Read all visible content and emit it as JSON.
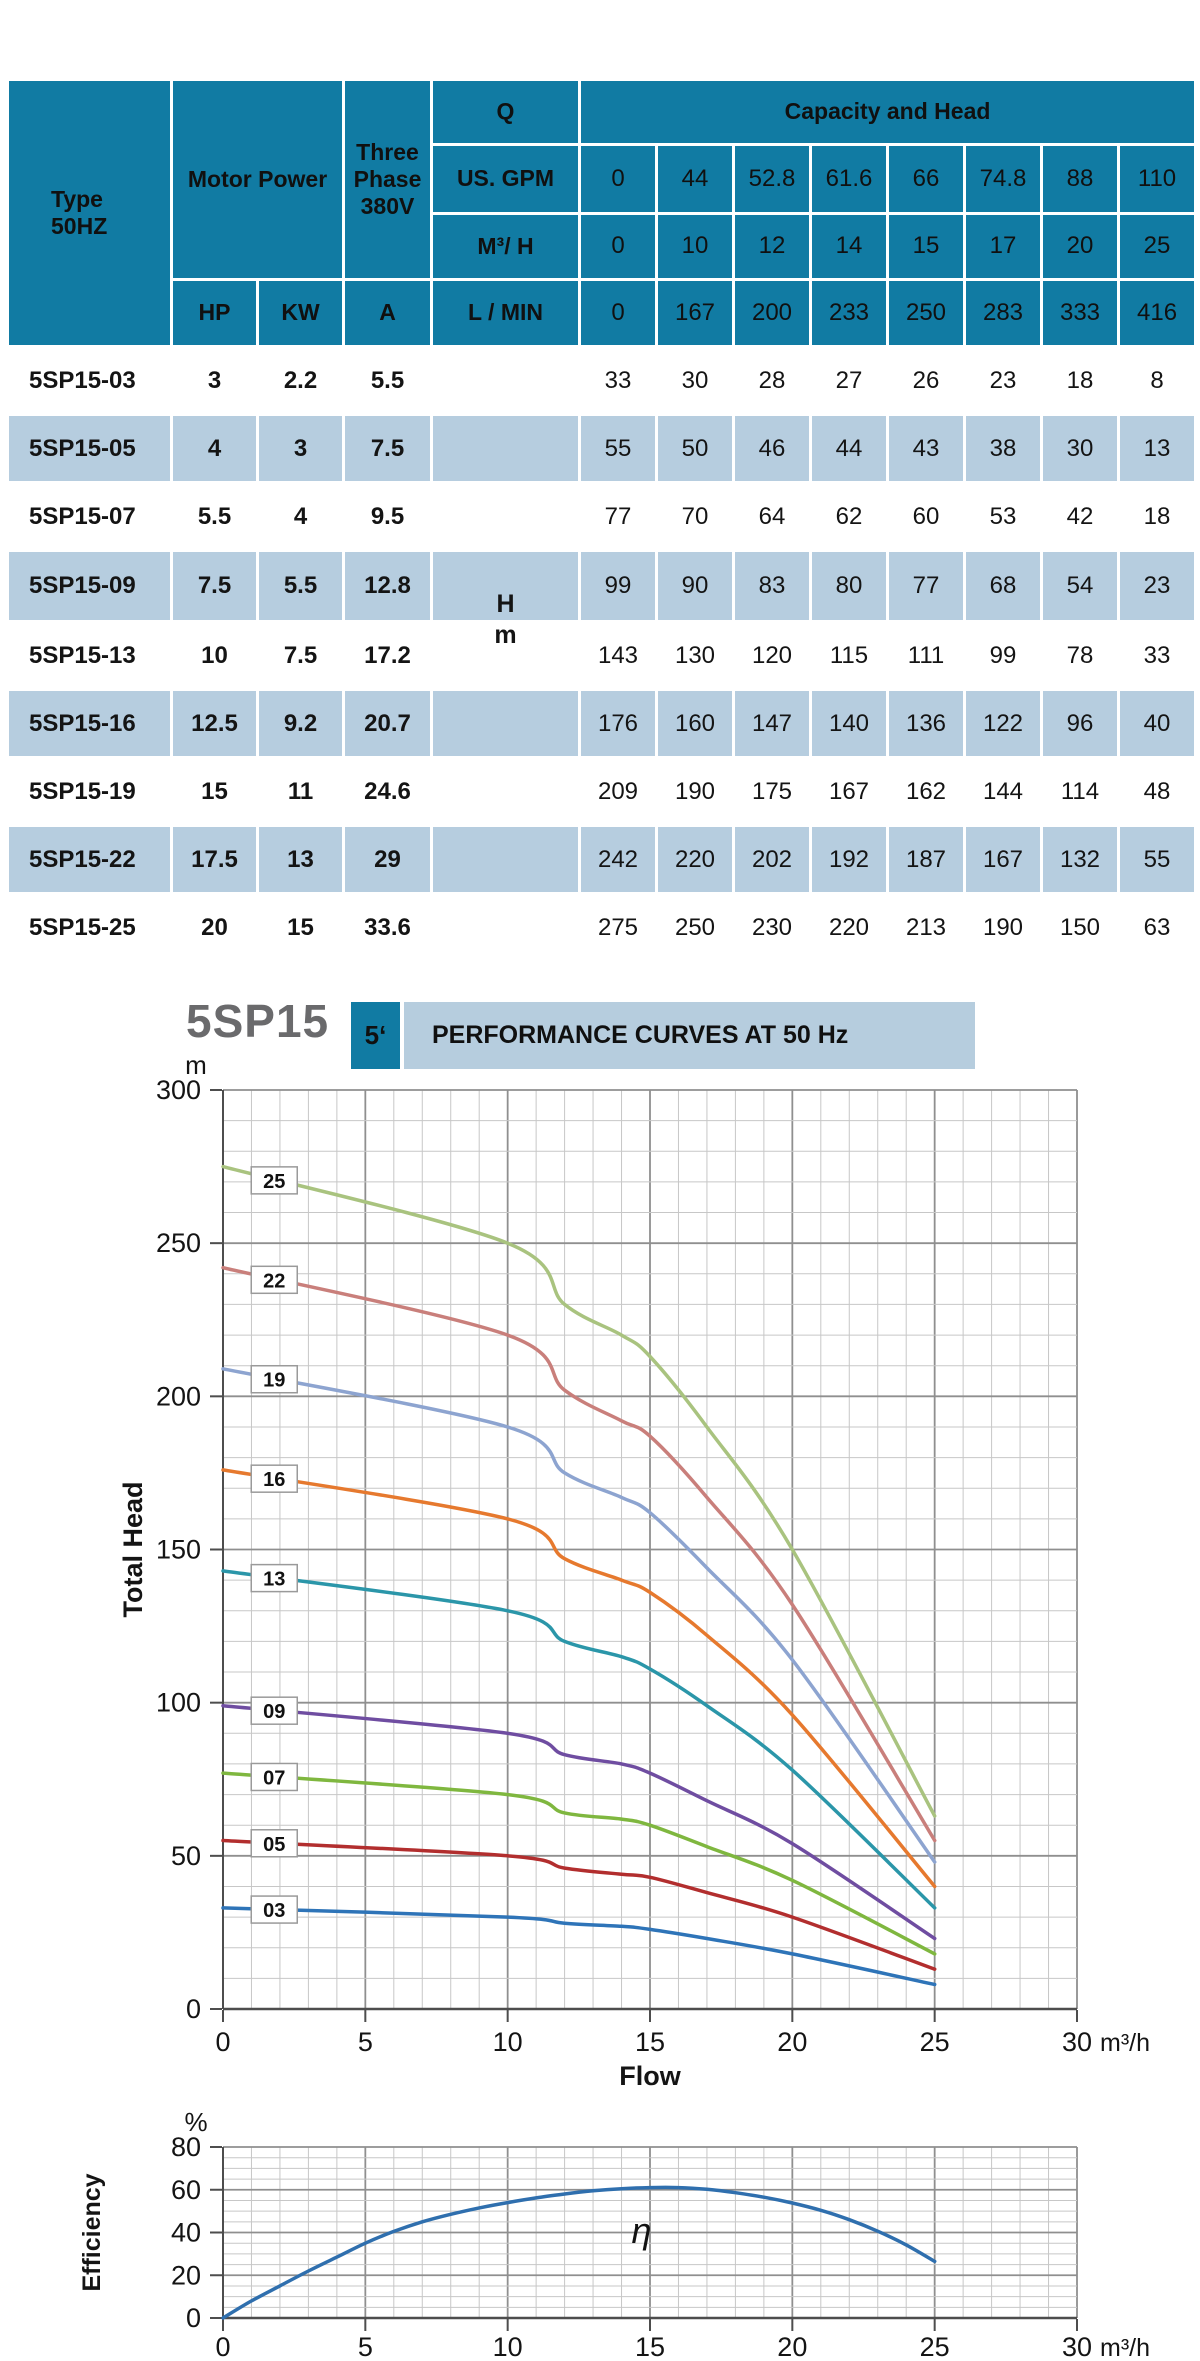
{
  "colors": {
    "header_bg": "#117ba3",
    "row_alt_bg": "#b6cddf",
    "row_bg": "#ffffff",
    "badge_bg": "#117ba3",
    "title_bar_bg": "#b6cdde",
    "title_model_gray": "#6a6a6c",
    "grid_minor": "#c7c7c7",
    "grid_major": "#8f8f8f",
    "axis": "#4d4d4d",
    "text": "#141414"
  },
  "table": {
    "header": {
      "type_label": "Type\n50HZ",
      "motor_power": "Motor Power",
      "three_phase": "Three\nPhase\n380V",
      "q_label": "Q",
      "capacity_head": "Capacity and Head",
      "us_gpm_label": "US. GPM",
      "m3h_label": "M³/ H",
      "lmin_label": "L / MIN",
      "hp": "HP",
      "kw": "KW",
      "a": "A",
      "gpm_values": [
        "0",
        "44",
        "52.8",
        "61.6",
        "66",
        "74.8",
        "88",
        "110"
      ],
      "m3h_values": [
        "0",
        "10",
        "12",
        "14",
        "15",
        "17",
        "20",
        "25"
      ],
      "lmin_values": [
        "0",
        "167",
        "200",
        "233",
        "250",
        "283",
        "333",
        "416"
      ]
    },
    "rows": [
      {
        "type": "5SP15-03",
        "hp": "3",
        "kw": "2.2",
        "a": "5.5",
        "unit": "",
        "heads": [
          "33",
          "30",
          "28",
          "27",
          "26",
          "23",
          "18",
          "8"
        ]
      },
      {
        "type": "5SP15-05",
        "hp": "4",
        "kw": "3",
        "a": "7.5",
        "unit": "",
        "heads": [
          "55",
          "50",
          "46",
          "44",
          "43",
          "38",
          "30",
          "13"
        ]
      },
      {
        "type": "5SP15-07",
        "hp": "5.5",
        "kw": "4",
        "a": "9.5",
        "unit": "",
        "heads": [
          "77",
          "70",
          "64",
          "62",
          "60",
          "53",
          "42",
          "18"
        ]
      },
      {
        "type": "5SP15-09",
        "hp": "7.5",
        "kw": "5.5",
        "a": "12.8",
        "unit": "H",
        "heads": [
          "99",
          "90",
          "83",
          "80",
          "77",
          "68",
          "54",
          "23"
        ]
      },
      {
        "type": "5SP15-13",
        "hp": "10",
        "kw": "7.5",
        "a": "17.2",
        "unit": "m",
        "heads": [
          "143",
          "130",
          "120",
          "115",
          "111",
          "99",
          "78",
          "33"
        ]
      },
      {
        "type": "5SP15-16",
        "hp": "12.5",
        "kw": "9.2",
        "a": "20.7",
        "unit": "",
        "heads": [
          "176",
          "160",
          "147",
          "140",
          "136",
          "122",
          "96",
          "40"
        ]
      },
      {
        "type": "5SP15-19",
        "hp": "15",
        "kw": "11",
        "a": "24.6",
        "unit": "",
        "heads": [
          "209",
          "190",
          "175",
          "167",
          "162",
          "144",
          "114",
          "48"
        ]
      },
      {
        "type": "5SP15-22",
        "hp": "17.5",
        "kw": "13",
        "a": "29",
        "unit": "",
        "heads": [
          "242",
          "220",
          "202",
          "192",
          "187",
          "167",
          "132",
          "55"
        ]
      },
      {
        "type": "5SP15-25",
        "hp": "20",
        "kw": "15",
        "a": "33.6",
        "unit": "",
        "heads": [
          "275",
          "250",
          "230",
          "220",
          "213",
          "190",
          "150",
          "63"
        ]
      }
    ]
  },
  "chart_header": {
    "model": "5SP15",
    "badge": "5‘",
    "title": "PERFORMANCE CURVES AT 50 Hz"
  },
  "chart_data": [
    {
      "type": "line",
      "name": "performance",
      "title": "PERFORMANCE CURVES AT 50 Hz",
      "xlabel": "Flow",
      "ylabel": "Total Head",
      "x_unit_label": "m³/h",
      "y_unit_label": "m",
      "xlim": [
        0,
        30
      ],
      "ylim": [
        0,
        300
      ],
      "x_tick_major": 5,
      "x_grid_minor": 1,
      "y_tick_major": 50,
      "y_grid_minor": 10,
      "grid": true,
      "legend_position": "on-curve-labels",
      "series_label_x": 1.8,
      "x": [
        0,
        10,
        12,
        14,
        15,
        17,
        20,
        25
      ],
      "series": [
        {
          "name": "25",
          "color": "#a9c37f",
          "values": [
            275,
            250,
            230,
            220,
            213,
            190,
            150,
            63
          ]
        },
        {
          "name": "22",
          "color": "#c97f7b",
          "values": [
            242,
            220,
            202,
            192,
            187,
            167,
            132,
            55
          ]
        },
        {
          "name": "19",
          "color": "#8da4d0",
          "values": [
            209,
            190,
            175,
            167,
            162,
            144,
            114,
            48
          ]
        },
        {
          "name": "16",
          "color": "#e6792e",
          "values": [
            176,
            160,
            147,
            140,
            136,
            122,
            96,
            40
          ]
        },
        {
          "name": "13",
          "color": "#2b96a9",
          "values": [
            143,
            130,
            120,
            115,
            111,
            99,
            78,
            33
          ]
        },
        {
          "name": "09",
          "color": "#6f4da1",
          "values": [
            99,
            90,
            83,
            80,
            77,
            68,
            54,
            23
          ]
        },
        {
          "name": "07",
          "color": "#7fb73f",
          "values": [
            77,
            70,
            64,
            62,
            60,
            53,
            42,
            18
          ]
        },
        {
          "name": "05",
          "color": "#b22e2e",
          "values": [
            55,
            50,
            46,
            44,
            43,
            38,
            30,
            13
          ]
        },
        {
          "name": "03",
          "color": "#2e74b8",
          "values": [
            33,
            30,
            28,
            27,
            26,
            23,
            18,
            8
          ]
        }
      ]
    },
    {
      "type": "line",
      "name": "efficiency",
      "xlabel": "",
      "ylabel": "Efficiency",
      "x_unit_label": "m³/h",
      "y_unit_label": "%",
      "xlim": [
        0,
        30
      ],
      "ylim": [
        0,
        80
      ],
      "x_tick_major": 5,
      "x_grid_minor": 1,
      "y_tick_major": 20,
      "y_grid_minor": 5,
      "grid": true,
      "annotation": {
        "text": "η",
        "x": 14.7,
        "y": 35
      },
      "series": [
        {
          "name": "eta",
          "color": "#2f6fae",
          "points": [
            [
              0,
              0
            ],
            [
              1,
              8
            ],
            [
              2,
              15
            ],
            [
              3,
              22
            ],
            [
              4,
              28.5
            ],
            [
              5,
              35
            ],
            [
              6,
              40.5
            ],
            [
              7,
              45
            ],
            [
              8,
              48.5
            ],
            [
              9,
              51.5
            ],
            [
              10,
              54
            ],
            [
              11,
              56.2
            ],
            [
              12,
              58
            ],
            [
              13,
              59.5
            ],
            [
              14,
              60.5
            ],
            [
              15,
              61
            ],
            [
              16,
              61
            ],
            [
              17,
              60.2
            ],
            [
              18,
              58.6
            ],
            [
              19,
              56.5
            ],
            [
              20,
              53.8
            ],
            [
              21,
              50.4
            ],
            [
              22,
              46
            ],
            [
              23,
              40.6
            ],
            [
              24,
              34.2
            ],
            [
              25,
              26.5
            ]
          ]
        }
      ]
    }
  ]
}
